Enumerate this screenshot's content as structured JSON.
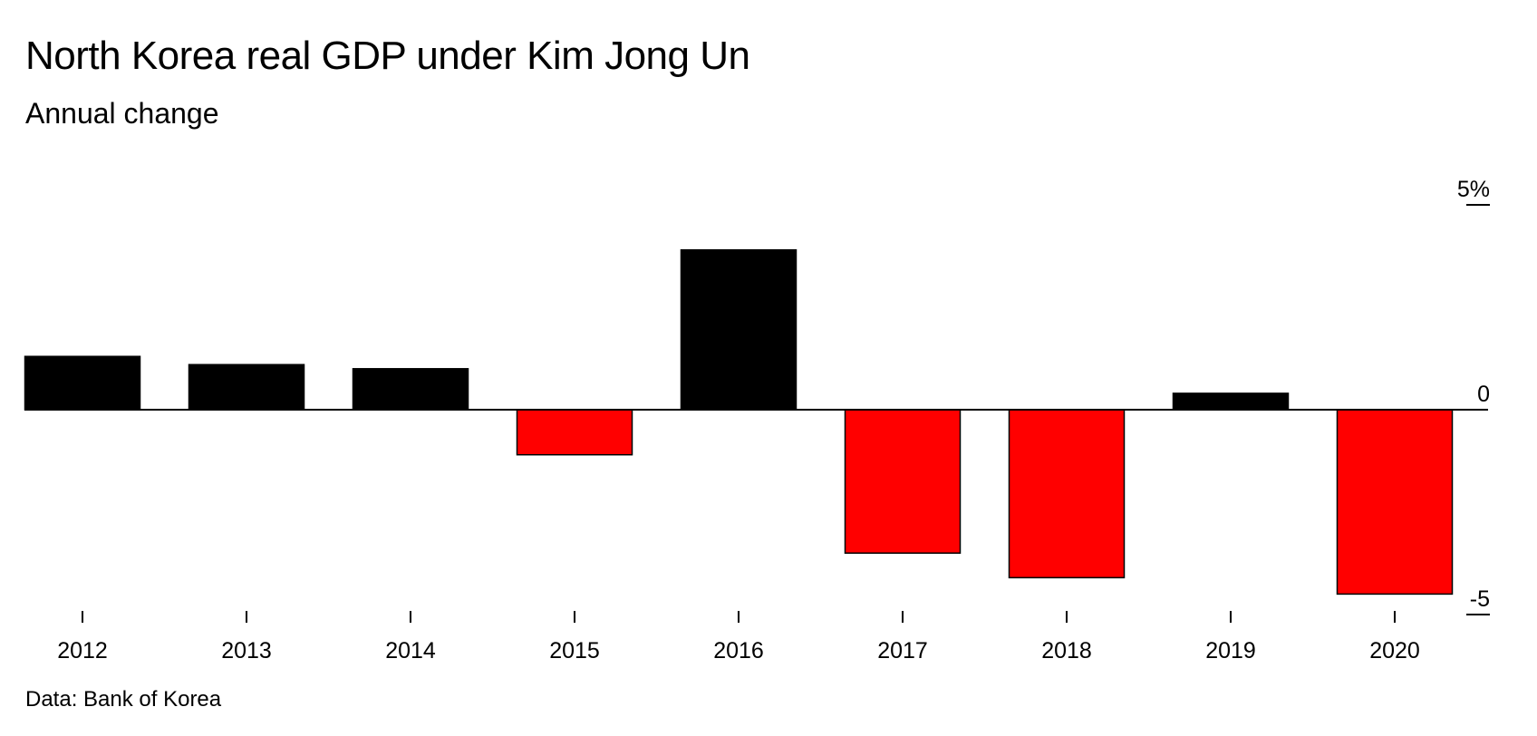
{
  "chart_data": {
    "type": "bar",
    "title": "North Korea real GDP under Kim Jong Un",
    "subtitle": "Annual change",
    "source": "Data: Bank of Korea",
    "categories": [
      "2012",
      "2013",
      "2014",
      "2015",
      "2016",
      "2017",
      "2018",
      "2019",
      "2020"
    ],
    "values": [
      1.3,
      1.1,
      1.0,
      -1.1,
      3.9,
      -3.5,
      -4.1,
      0.4,
      -4.5
    ],
    "y_ticks": [
      {
        "value": 5,
        "label": "5%"
      },
      {
        "value": 0,
        "label": "0"
      },
      {
        "value": -5,
        "label": "-5"
      }
    ],
    "ylim": [
      -5,
      5
    ],
    "xlabel": "",
    "ylabel": "",
    "grid": false,
    "axis_position": "right",
    "colors": {
      "positive": "#000000",
      "negative": "#ff0000",
      "outline": "#000000"
    }
  }
}
